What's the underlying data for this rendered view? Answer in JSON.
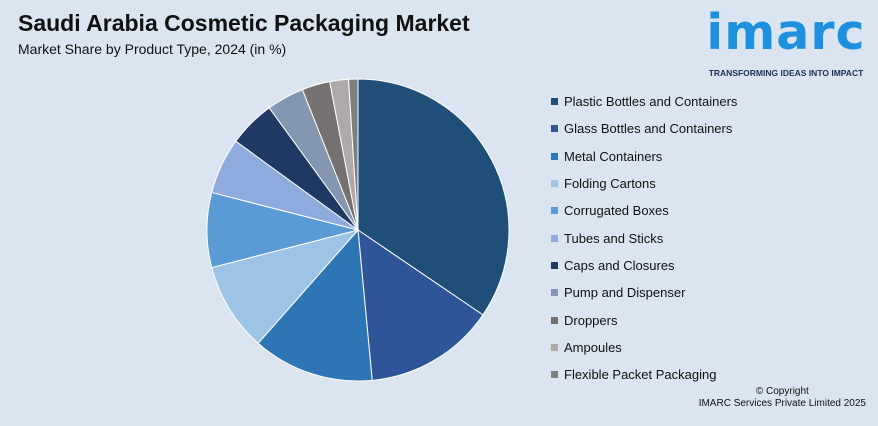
{
  "header": {
    "title": "Saudi Arabia Cosmetic Packaging Market",
    "subtitle": "Market Share by Product Type, 2024 (in %)"
  },
  "logo": {
    "text": "imarc",
    "tagline": "TRANSFORMING IDEAS INTO IMPACT",
    "color": "#1e90e0"
  },
  "footer": {
    "copyright": "© Copyright",
    "company": "IMARC Services Private Limited 2025"
  },
  "chart_data": {
    "type": "pie",
    "title": "Saudi Arabia Cosmetic Packaging Market",
    "subtitle": "Market Share by Product Type, 2024 (in %)",
    "legend_position": "right",
    "categories": [
      "Plastic Bottles and Containers",
      "Glass Bottles and Containers",
      "Metal Containers",
      "Folding Cartons",
      "Corrugated Boxes",
      "Tubes and Sticks",
      "Caps and Closures",
      "Pump and Dispenser",
      "Droppers",
      "Ampoules",
      "Flexible Packet Packaging"
    ],
    "values": [
      34.5,
      14.0,
      13.0,
      9.5,
      8.0,
      6.0,
      5.0,
      4.0,
      3.0,
      2.0,
      1.0
    ],
    "colors": [
      "#1f4e79",
      "#2e5597",
      "#2e75b6",
      "#9dc3e6",
      "#5b9bd5",
      "#8faadc",
      "#203864",
      "#8497b0",
      "#767171",
      "#aeaaaa",
      "#7f7f7f"
    ]
  }
}
